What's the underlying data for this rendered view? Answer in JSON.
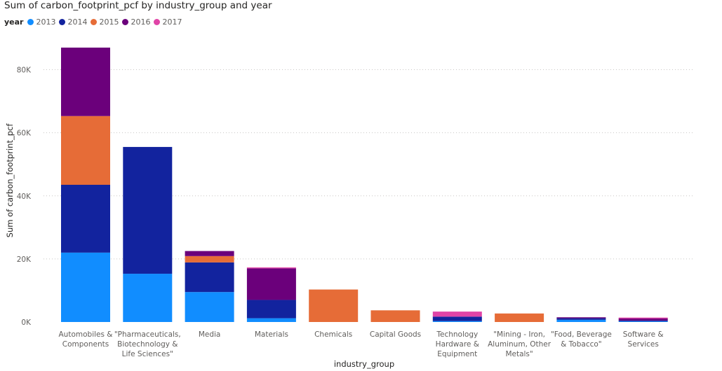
{
  "chart_data": {
    "type": "bar",
    "stacked": true,
    "title": "Sum of carbon_footprint_pcf by industry_group and year",
    "legend_title": "year",
    "legend_position": "top-left",
    "xlabel": "industry_group",
    "ylabel": "Sum of carbon_footprint_pcf",
    "ylim": [
      0,
      87000
    ],
    "yticks": [
      0,
      20000,
      40000,
      60000,
      80000
    ],
    "ytick_labels": [
      "0K",
      "20K",
      "40K",
      "60K",
      "80K"
    ],
    "grid": true,
    "categories": [
      [
        "Automobiles &",
        "Components"
      ],
      [
        "\"Pharmaceuticals,",
        "Biotechnology &",
        "Life Sciences\""
      ],
      [
        "Media"
      ],
      [
        "Materials"
      ],
      [
        "Chemicals"
      ],
      [
        "Capital Goods"
      ],
      [
        "Technology",
        "Hardware &",
        "Equipment"
      ],
      [
        "\"Mining - Iron,",
        "Aluminum, Other",
        "Metals\""
      ],
      [
        "\"Food, Beverage",
        "& Tobacco\""
      ],
      [
        "Software &",
        "Services"
      ]
    ],
    "series": [
      {
        "name": "2013",
        "color": "#118DFF",
        "values": [
          22000,
          15300,
          9500,
          1200,
          0,
          0,
          300,
          0,
          700,
          200
        ]
      },
      {
        "name": "2014",
        "color": "#12239E",
        "values": [
          21500,
          40200,
          9400,
          5800,
          0,
          0,
          1400,
          0,
          500,
          300
        ]
      },
      {
        "name": "2015",
        "color": "#E66C37",
        "values": [
          21800,
          0,
          2000,
          0,
          10300,
          3700,
          0,
          2700,
          0,
          0
        ]
      },
      {
        "name": "2016",
        "color": "#6B007B",
        "values": [
          21700,
          0,
          1600,
          10000,
          0,
          0,
          0,
          0,
          300,
          600
        ]
      },
      {
        "name": "2017",
        "color": "#E044A7",
        "values": [
          0,
          0,
          0,
          300,
          0,
          0,
          1600,
          0,
          0,
          300
        ]
      }
    ]
  }
}
